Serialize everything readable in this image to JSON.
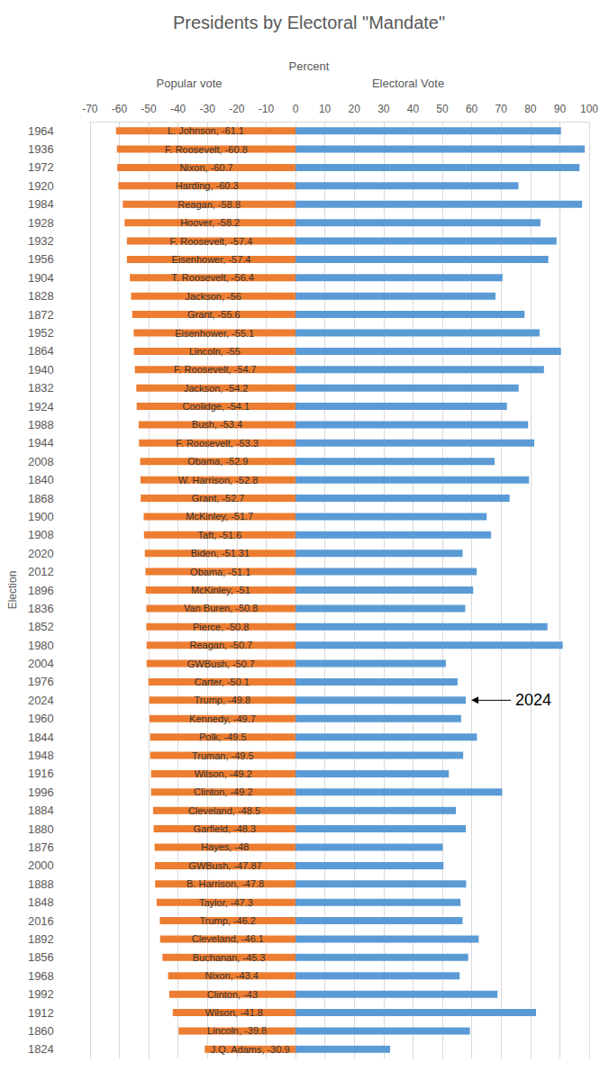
{
  "chart_data": {
    "type": "bar",
    "orientation": "horizontal",
    "title": "Presidents by Electoral \"Mandate\"",
    "x_label": "Percent",
    "y_label": "Election",
    "grid": true,
    "xlim": [
      -70,
      100
    ],
    "xticks": [
      -70,
      -60,
      -50,
      -40,
      -30,
      -20,
      -10,
      0,
      10,
      20,
      30,
      40,
      50,
      60,
      70,
      80,
      90,
      100
    ],
    "categories": [
      "1964",
      "1936",
      "1972",
      "1920",
      "1984",
      "1928",
      "1932",
      "1956",
      "1904",
      "1828",
      "1872",
      "1952",
      "1864",
      "1940",
      "1832",
      "1924",
      "1988",
      "1944",
      "2008",
      "1840",
      "1868",
      "1900",
      "1908",
      "2020",
      "2012",
      "1896",
      "1836",
      "1852",
      "1980",
      "2004",
      "1976",
      "2024",
      "1960",
      "1844",
      "1948",
      "1916",
      "1996",
      "1884",
      "1880",
      "1876",
      "2000",
      "1888",
      "1848",
      "2016",
      "1892",
      "1856",
      "1968",
      "1992",
      "1912",
      "1860",
      "1824"
    ],
    "series": [
      {
        "name": "Popular vote",
        "color": "#ED7D31",
        "data_labels": true,
        "values": [
          -61.1,
          -60.8,
          -60.7,
          -60.3,
          -58.8,
          -58.2,
          -57.4,
          -57.4,
          -56.4,
          -56,
          -55.6,
          -55.1,
          -55,
          -54.7,
          -54.2,
          -54.1,
          -53.4,
          -53.3,
          -52.9,
          -52.8,
          -52.7,
          -51.7,
          -51.6,
          -51.31,
          -51.1,
          -51,
          -50.8,
          -50.8,
          -50.7,
          -50.7,
          -50.1,
          -49.8,
          -49.7,
          -49.5,
          -49.5,
          -49.2,
          -49.2,
          -48.5,
          -48.3,
          -48,
          -47.87,
          -47.8,
          -47.3,
          -46.2,
          -46.1,
          -45.3,
          -43.4,
          -43,
          -41.8,
          -39.8,
          -30.9
        ],
        "value_labels": [
          "L. Johnson, -61.1",
          "F. Roosevelt, -60.8",
          "Nixon, -60.7",
          "Harding, -60.3",
          "Reagan, -58.8",
          "Hoover, -58.2",
          "F. Roosevelt, -57.4",
          "Eisenhower, -57.4",
          "T. Roosevelt, -56.4",
          "Jackson, -56",
          "Grant, -55.6",
          "Eisenhower, -55.1",
          "Lincoln, -55",
          "F. Roosevelt, -54.7",
          "Jackson, -54.2",
          "Coolidge, -54.1",
          "Bush, -53.4",
          "F. Roosevelt, -53.3",
          "Obama, -52.9",
          "W. Harrison, -52.8",
          "Grant, -52.7",
          "McKinley, -51.7",
          "Taft, -51.6",
          "Biden, -51.31",
          "Obama, -51.1",
          "McKinley, -51",
          "Van Buren, -50.8",
          "Pierce, -50.8",
          "Reagan, -50.7",
          "GWBush, -50.7",
          "Carter, -50.1",
          "Trump, -49.8",
          "Kennedy, -49.7",
          "Polk, -49.5",
          "Truman, -49.5",
          "Wilson, -49.2",
          "Clinton, -49.2",
          "Cleveland, -48.5",
          "Garfield, -48.3",
          "Hayes, -48",
          "GWBush, -47.87",
          "B. Harrison, -47.8",
          "Taylor, -47.3",
          "Trump, -46.2",
          "Cleveland, -46.1",
          "Buchanan, -45.3",
          "Nixon, -43.4",
          "Clinton, -43",
          "Wilson, -41.8",
          "Lincoln, -39.8",
          "J.Q. Adams, -30.9"
        ]
      },
      {
        "name": "Electoral Vote",
        "color": "#5B9BD5",
        "values": [
          90.4,
          98.5,
          96.7,
          75.9,
          97.6,
          83.4,
          88.9,
          86.1,
          70.5,
          68.1,
          78,
          83.1,
          90.4,
          84.6,
          76,
          72,
          79.2,
          81.3,
          67.8,
          79.5,
          72.9,
          65.1,
          66.6,
          56.9,
          61.7,
          60.5,
          57.8,
          85.8,
          91,
          51.2,
          55.2,
          58,
          56.4,
          61.8,
          57.1,
          52.2,
          70.4,
          54.6,
          58,
          50.1,
          50.4,
          58.1,
          56.2,
          56.9,
          62.4,
          58.8,
          55.9,
          68.8,
          81.9,
          59.4,
          32.2
        ]
      }
    ],
    "annotations": [
      {
        "text": "2024",
        "category": "2024"
      }
    ]
  }
}
